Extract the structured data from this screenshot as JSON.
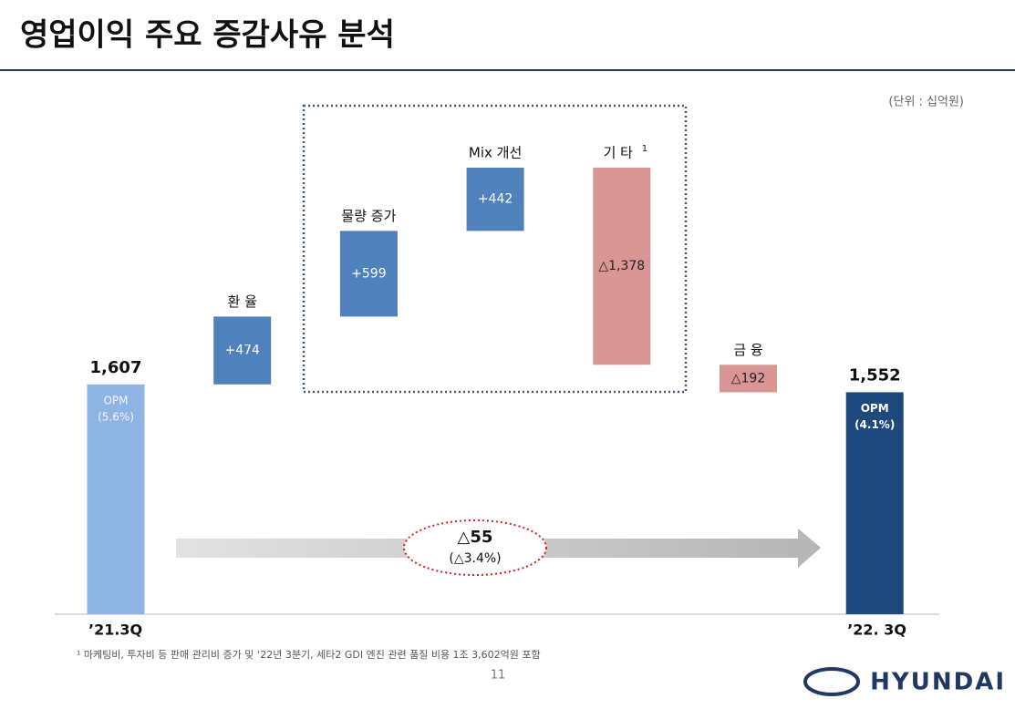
{
  "title": "영업이익 주요 증감사유 분석",
  "unit": "(단위 : 십억원)",
  "chart_data": {
    "type": "waterfall",
    "categories": [
      "’21.3Q",
      "환 율",
      "물량 증가",
      "Mix 개선",
      "기 타",
      "금 융",
      "’22. 3Q"
    ],
    "superscripts": [
      null,
      null,
      null,
      null,
      "1",
      null,
      null
    ],
    "values": [
      1607,
      474,
      599,
      442,
      -1378,
      -192,
      1552
    ],
    "value_labels": [
      "1,607",
      "+474",
      "+599",
      "+442",
      "△1,378",
      "△192",
      "1,552"
    ],
    "colors": [
      "#8eb4e3",
      "#4f81bd",
      "#4f81bd",
      "#4f81bd",
      "#d99694",
      "#d99694",
      "#1f497d"
    ],
    "start_note": [
      "OPM",
      "(5.6%)"
    ],
    "end_note": [
      "OPM",
      "(4.1%)"
    ],
    "change_labels": [
      "△55",
      "(△3.4%)"
    ]
  },
  "footnote": "¹ 마케팅비, 투자비 등 판매 관리비 증가 및 ‘22년 3분기, 세타2 GDI 엔진 관련 품질 비용 1조 3,602억원 포함",
  "page_number": "11",
  "logo": "HYUNDAI"
}
